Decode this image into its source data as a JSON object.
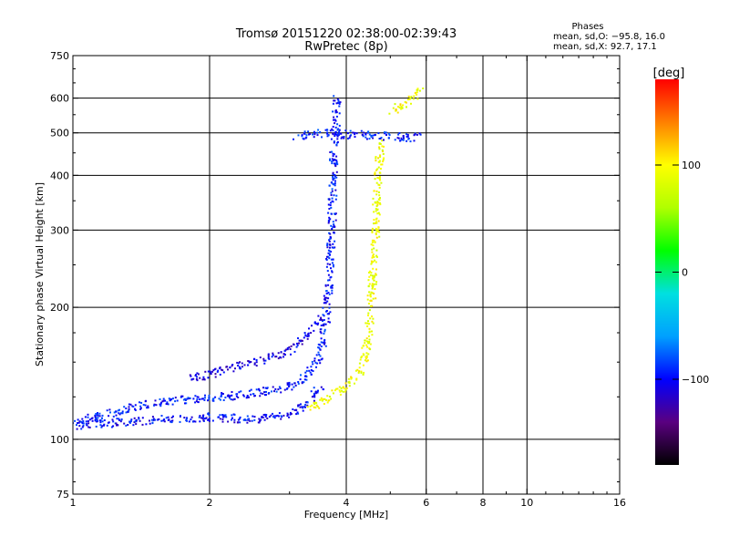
{
  "chart_data": {
    "type": "scatter",
    "title": "Tromsø 20151220 02:38:00-02:39:43",
    "subtitle": "RwPretec (8p)",
    "xlabel": "Frequency [MHz]",
    "ylabel": "Stationary phase Virtual Height [km]",
    "x_scale": "log",
    "y_scale": "log",
    "xlim": [
      1,
      16
    ],
    "ylim": [
      75,
      750
    ],
    "x_ticks": [
      1,
      2,
      4,
      6,
      8,
      10,
      16
    ],
    "x_tick_labels": [
      "1",
      "2",
      "4",
      "6",
      "8",
      "10",
      "16"
    ],
    "x_gridlines": [
      2,
      4,
      6,
      8,
      10
    ],
    "y_ticks": [
      75,
      100,
      200,
      300,
      400,
      500,
      600,
      750
    ],
    "y_tick_labels": [
      "75",
      "100",
      "200",
      "300",
      "400",
      "500",
      "600",
      "750"
    ],
    "y_gridlines": [
      100,
      200,
      300,
      400,
      500,
      600
    ],
    "grid": true,
    "stats": {
      "heading": "Phases",
      "line_o": "mean, sd,O: −95.8, 16.0",
      "line_x": "mean, sd,X: 92.7, 17.1"
    },
    "colorbar": {
      "label": "[deg]",
      "range": [
        -180,
        180
      ],
      "ticks": [
        100,
        0,
        -100
      ],
      "tick_labels": [
        "100",
        "0",
        "−100"
      ],
      "colors": [
        "#000000",
        "#5a0080",
        "#0000ff",
        "#00a0ff",
        "#00e0e0",
        "#00ff00",
        "#b0ff00",
        "#ffff00",
        "#ff8000",
        "#ff0000"
      ]
    },
    "series": [
      {
        "mode": "O",
        "phase_deg": -95.8,
        "trace": [
          [
            1.0,
            110
          ],
          [
            1.2,
            115
          ],
          [
            1.4,
            120
          ],
          [
            1.6,
            122
          ],
          [
            1.8,
            124
          ],
          [
            2.0,
            125
          ],
          [
            2.2,
            126
          ],
          [
            2.5,
            128
          ],
          [
            2.8,
            130
          ],
          [
            3.0,
            133
          ],
          [
            3.2,
            138
          ],
          [
            3.4,
            148
          ],
          [
            3.5,
            160
          ],
          [
            3.6,
            190
          ],
          [
            3.65,
            230
          ],
          [
            3.7,
            300
          ],
          [
            3.72,
            380
          ],
          [
            3.75,
            480
          ],
          [
            3.8,
            600
          ]
        ]
      },
      {
        "mode": "O-lower",
        "phase_deg": -100,
        "trace": [
          [
            1.0,
            108
          ],
          [
            1.3,
            110
          ],
          [
            1.6,
            112
          ],
          [
            2.0,
            113
          ],
          [
            2.3,
            112
          ],
          [
            2.6,
            112
          ],
          [
            2.9,
            114
          ],
          [
            3.1,
            117
          ],
          [
            3.3,
            123
          ],
          [
            3.5,
            132
          ]
        ]
      },
      {
        "mode": "O-upper",
        "phase_deg": -110,
        "trace": [
          [
            1.8,
            138
          ],
          [
            2.0,
            142
          ],
          [
            2.3,
            148
          ],
          [
            2.6,
            152
          ],
          [
            2.9,
            158
          ],
          [
            3.1,
            165
          ],
          [
            3.3,
            175
          ],
          [
            3.5,
            190
          ]
        ]
      },
      {
        "mode": "X",
        "phase_deg": 92.7,
        "trace": [
          [
            3.3,
            118
          ],
          [
            3.5,
            122
          ],
          [
            3.8,
            128
          ],
          [
            4.1,
            135
          ],
          [
            4.3,
            145
          ],
          [
            4.4,
            160
          ],
          [
            4.5,
            190
          ],
          [
            4.55,
            230
          ],
          [
            4.6,
            280
          ],
          [
            4.65,
            350
          ],
          [
            4.7,
            420
          ],
          [
            4.75,
            480
          ]
        ]
      },
      {
        "mode": "F2-O-top",
        "phase_deg": -95,
        "trace": [
          [
            3.1,
            490
          ],
          [
            3.3,
            500
          ],
          [
            3.6,
            500
          ],
          [
            4.0,
            498
          ],
          [
            4.5,
            495
          ],
          [
            5.0,
            492
          ],
          [
            5.5,
            490
          ],
          [
            5.8,
            492
          ]
        ]
      },
      {
        "mode": "X-top",
        "phase_deg": 95,
        "trace": [
          [
            5.0,
            560
          ],
          [
            5.2,
            575
          ],
          [
            5.4,
            590
          ],
          [
            5.6,
            610
          ],
          [
            5.8,
            640
          ]
        ]
      }
    ]
  }
}
